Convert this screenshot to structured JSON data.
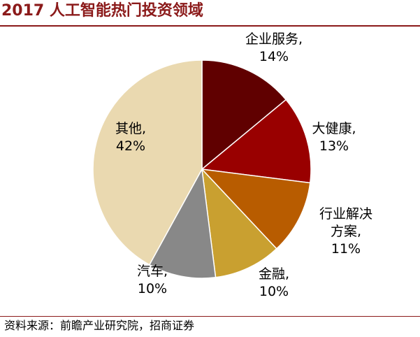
{
  "header": {
    "title": "2017 人工智能热门投资领域"
  },
  "footer": {
    "source": "资料来源：前瞻产业研究院，招商证券"
  },
  "chart_data": {
    "type": "pie",
    "title": "2017 人工智能热门投资领域",
    "start_angle_deg": 0,
    "direction": "clockwise",
    "slices": [
      {
        "name": "企业服务",
        "value": 14,
        "label_lines": [
          "企业服务,",
          "14%"
        ],
        "color": "#600000"
      },
      {
        "name": "大健康",
        "value": 13,
        "label_lines": [
          "大健康,",
          "13%"
        ],
        "color": "#990000"
      },
      {
        "name": "行业解决方案",
        "value": 11,
        "label_lines": [
          "行业解决",
          "方案,",
          "11%"
        ],
        "color": "#b85c00"
      },
      {
        "name": "金融",
        "value": 10,
        "label_lines": [
          "金融,",
          "10%"
        ],
        "color": "#c9a030"
      },
      {
        "name": "汽车",
        "value": 10,
        "label_lines": [
          "汽车,",
          "10%"
        ],
        "color": "#888888"
      },
      {
        "name": "其他",
        "value": 42,
        "label_lines": [
          "其他,",
          "42%"
        ],
        "color": "#ead9b0"
      }
    ]
  }
}
